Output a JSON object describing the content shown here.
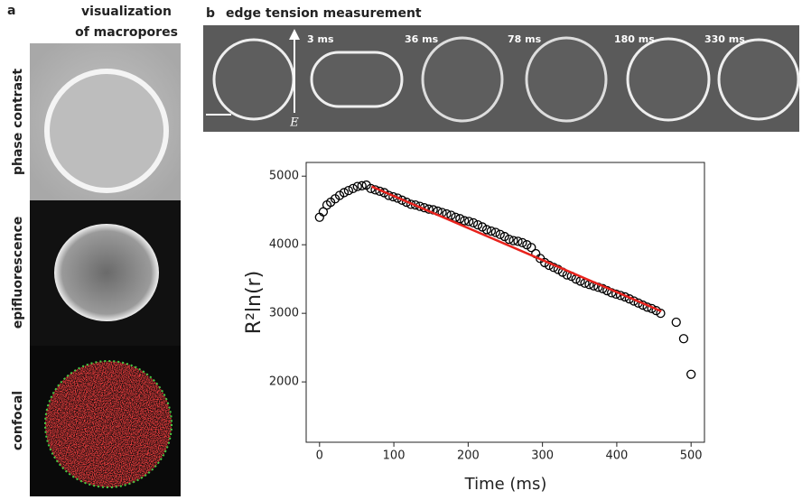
{
  "panel_a": {
    "label": "a",
    "title_lines": [
      "visualization",
      "of macropores"
    ],
    "rows": [
      "phase contrast",
      "epifluorescence",
      "confocal"
    ]
  },
  "panel_b": {
    "label": "b",
    "title": "edge tension measurement",
    "times": [
      "3 ms",
      "36 ms",
      "78 ms",
      "180 ms",
      "330 ms"
    ],
    "field_label": "E"
  },
  "chart_data": {
    "type": "scatter",
    "x_label": "Time (ms)",
    "y_label": "R²ln(r)",
    "x": [
      0,
      5,
      10,
      15,
      21,
      27,
      33,
      39,
      45,
      51,
      57,
      63,
      69,
      75,
      81,
      87,
      93,
      99,
      105,
      111,
      117,
      123,
      129,
      135,
      141,
      147,
      153,
      159,
      165,
      171,
      177,
      183,
      189,
      195,
      201,
      207,
      213,
      219,
      225,
      231,
      237,
      243,
      249,
      255,
      261,
      267,
      273,
      279,
      285,
      291,
      297,
      303,
      309,
      315,
      321,
      327,
      333,
      339,
      345,
      351,
      357,
      363,
      369,
      375,
      381,
      387,
      393,
      399,
      405,
      411,
      417,
      423,
      429,
      435,
      441,
      447,
      453,
      459,
      480,
      490,
      500
    ],
    "values": [
      4400,
      4480,
      4580,
      4620,
      4670,
      4720,
      4760,
      4790,
      4820,
      4850,
      4860,
      4870,
      4820,
      4800,
      4780,
      4760,
      4720,
      4700,
      4680,
      4650,
      4620,
      4590,
      4580,
      4560,
      4540,
      4520,
      4510,
      4490,
      4470,
      4450,
      4430,
      4400,
      4380,
      4350,
      4340,
      4320,
      4290,
      4260,
      4220,
      4200,
      4180,
      4150,
      4120,
      4080,
      4060,
      4050,
      4030,
      4000,
      3960,
      3870,
      3800,
      3740,
      3700,
      3670,
      3640,
      3600,
      3560,
      3540,
      3500,
      3470,
      3440,
      3420,
      3400,
      3380,
      3360,
      3330,
      3300,
      3280,
      3260,
      3240,
      3210,
      3180,
      3150,
      3120,
      3090,
      3070,
      3040,
      3000,
      2870,
      2630,
      2110
    ],
    "marker_color": "#000000",
    "fit": {
      "x": [
        70,
        460
      ],
      "values": [
        4850,
        3030
      ],
      "color": "#e8221c"
    },
    "xlim": [
      -18,
      518
    ],
    "xticks": [
      0,
      100,
      200,
      300,
      400,
      500
    ],
    "ylim": [
      1120,
      5200
    ],
    "yticks": [
      2000,
      3000,
      4000,
      5000
    ]
  }
}
